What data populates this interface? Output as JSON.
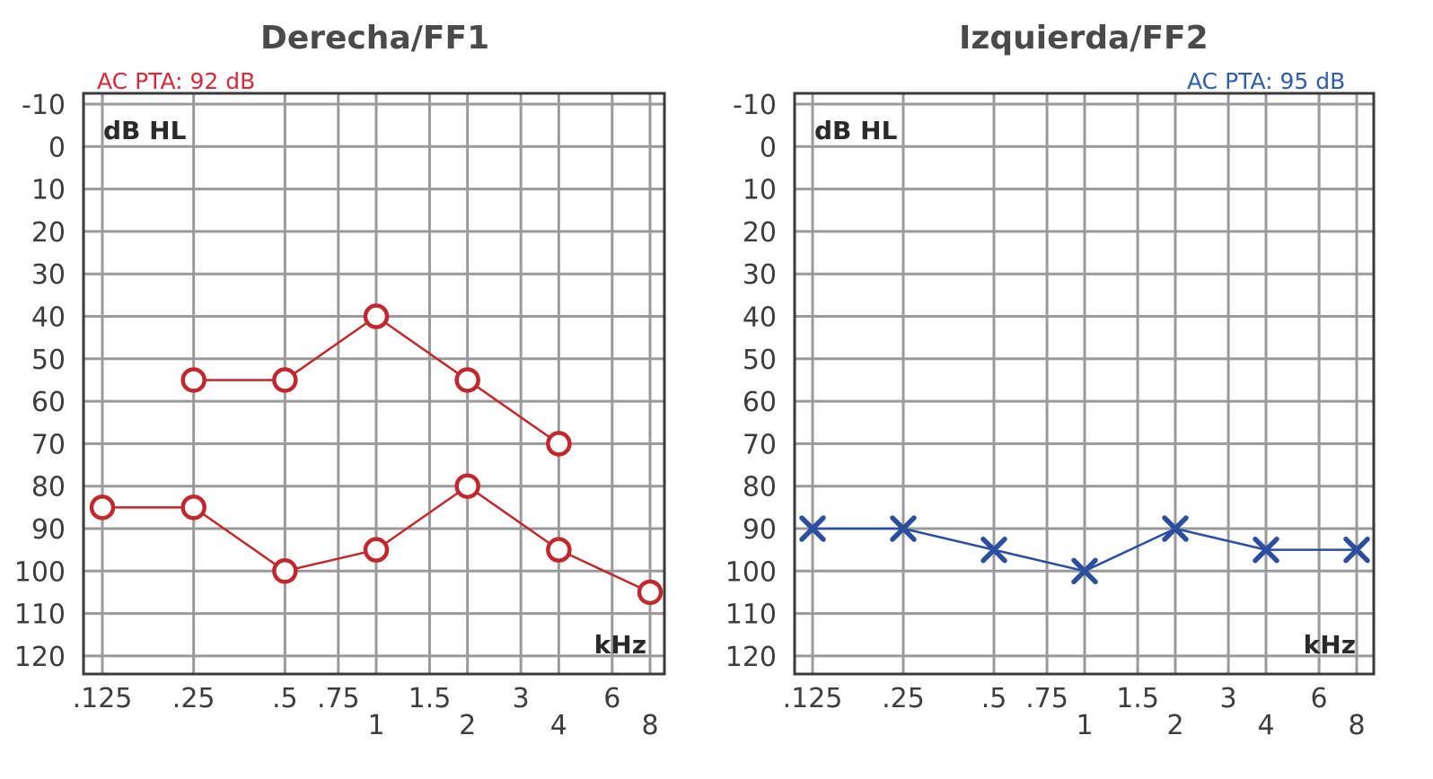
{
  "colors": {
    "right_ear": "#c0282d",
    "right_pta": "#d62a3c",
    "left_ear": "#2b4f9e",
    "left_pta": "#2f5da8",
    "grid": "#9a9a9a",
    "frame": "#3a3a3a",
    "text": "#3d3d3d"
  },
  "chart_data": [
    {
      "type": "line",
      "title": "Derecha/FF1",
      "annotation": "AC PTA: 92 dB",
      "ylabel": "dB HL",
      "xlabel": "kHz",
      "y_axis_inverted": true,
      "ylim": [
        -10,
        120
      ],
      "yticks": [
        -10,
        0,
        10,
        20,
        30,
        40,
        50,
        60,
        70,
        80,
        90,
        100,
        110,
        120
      ],
      "x_scale": "log2",
      "xlim": [
        0.125,
        8
      ],
      "xticks_major": [
        {
          "value": 0.125,
          "label": ".125"
        },
        {
          "value": 0.25,
          "label": ".25"
        },
        {
          "value": 0.5,
          "label": ".5"
        },
        {
          "value": 1,
          "label": "1"
        },
        {
          "value": 2,
          "label": "2"
        },
        {
          "value": 4,
          "label": "4"
        },
        {
          "value": 8,
          "label": "8"
        }
      ],
      "xticks_minor": [
        {
          "value": 0.75,
          "label": ".75"
        },
        {
          "value": 1.5,
          "label": "1.5"
        },
        {
          "value": 3,
          "label": "3"
        },
        {
          "value": 6,
          "label": "6"
        }
      ],
      "grid": true,
      "series": [
        {
          "marker": "circle",
          "points": [
            [
              0.25,
              55
            ],
            [
              0.5,
              55
            ],
            [
              1,
              40
            ],
            [
              2,
              55
            ],
            [
              4,
              70
            ]
          ]
        },
        {
          "marker": "circle",
          "points": [
            [
              0.125,
              85
            ],
            [
              0.25,
              85
            ],
            [
              0.5,
              100
            ],
            [
              1,
              95
            ],
            [
              2,
              80
            ],
            [
              4,
              95
            ],
            [
              8,
              105
            ]
          ]
        }
      ]
    },
    {
      "type": "line",
      "title": "Izquierda/FF2",
      "annotation": "AC PTA: 95 dB",
      "ylabel": "dB HL",
      "xlabel": "kHz",
      "y_axis_inverted": true,
      "ylim": [
        -10,
        120
      ],
      "yticks": [
        -10,
        0,
        10,
        20,
        30,
        40,
        50,
        60,
        70,
        80,
        90,
        100,
        110,
        120
      ],
      "x_scale": "log2",
      "xlim": [
        0.125,
        8
      ],
      "xticks_major": [
        {
          "value": 0.125,
          "label": ".125"
        },
        {
          "value": 0.25,
          "label": ".25"
        },
        {
          "value": 0.5,
          "label": ".5"
        },
        {
          "value": 1,
          "label": "1"
        },
        {
          "value": 2,
          "label": "2"
        },
        {
          "value": 4,
          "label": "4"
        },
        {
          "value": 8,
          "label": "8"
        }
      ],
      "xticks_minor": [
        {
          "value": 0.75,
          "label": ".75"
        },
        {
          "value": 1.5,
          "label": "1.5"
        },
        {
          "value": 3,
          "label": "3"
        },
        {
          "value": 6,
          "label": "6"
        }
      ],
      "grid": true,
      "series": [
        {
          "marker": "cross",
          "points": [
            [
              0.125,
              90
            ],
            [
              0.25,
              90
            ],
            [
              0.5,
              95
            ],
            [
              1,
              100
            ],
            [
              2,
              90
            ],
            [
              4,
              95
            ],
            [
              8,
              95
            ]
          ]
        }
      ]
    }
  ]
}
